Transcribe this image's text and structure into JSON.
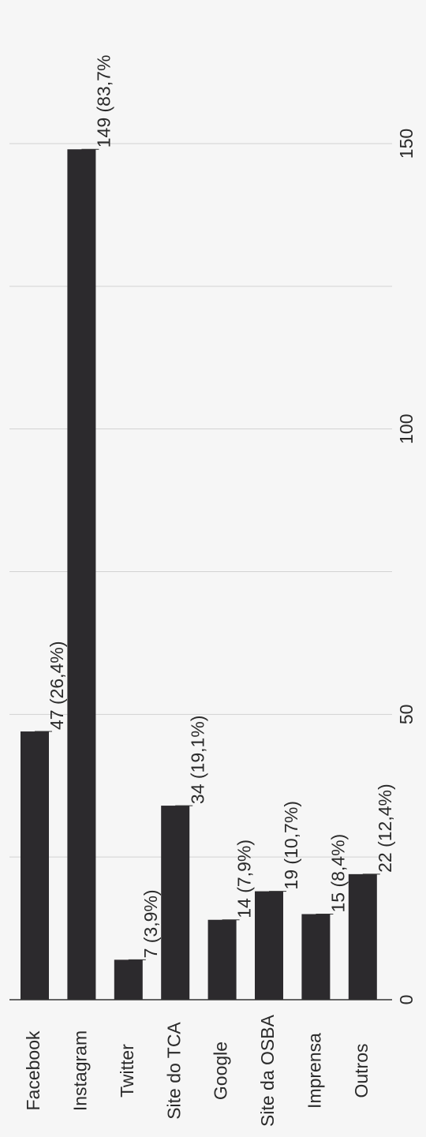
{
  "chart_data": {
    "type": "bar",
    "orientation": "horizontal-rotated",
    "categories": [
      "Facebook",
      "Instagram",
      "Twitter",
      "Site do TCA",
      "Google",
      "Site da OSBA",
      "Imprensa",
      "Outros"
    ],
    "values": [
      47,
      149,
      7,
      34,
      14,
      19,
      15,
      22
    ],
    "data_labels": [
      "47 (26,4%)",
      "149 (83,7%",
      "7 (3,9%)",
      "34 (19,1%)",
      "14 (7,9%)",
      "19 (10,7%)",
      "15 (8,4%)",
      "22 (12,4%)"
    ],
    "value_axis": {
      "range": [
        0,
        150
      ],
      "ticks": [
        0,
        50,
        100,
        150
      ],
      "tick_labels": [
        "0",
        "50",
        "100",
        "150"
      ],
      "minor_gridlines": [
        25,
        75,
        125
      ]
    },
    "grid": true,
    "legend": "none",
    "title": "",
    "xlabel": "",
    "ylabel": ""
  },
  "colors": {
    "bar": "#2c2a2d",
    "grid": "#d2d2d2",
    "axis": "#333333",
    "text": "#2a2a2a",
    "background": "#f6f6f6"
  }
}
